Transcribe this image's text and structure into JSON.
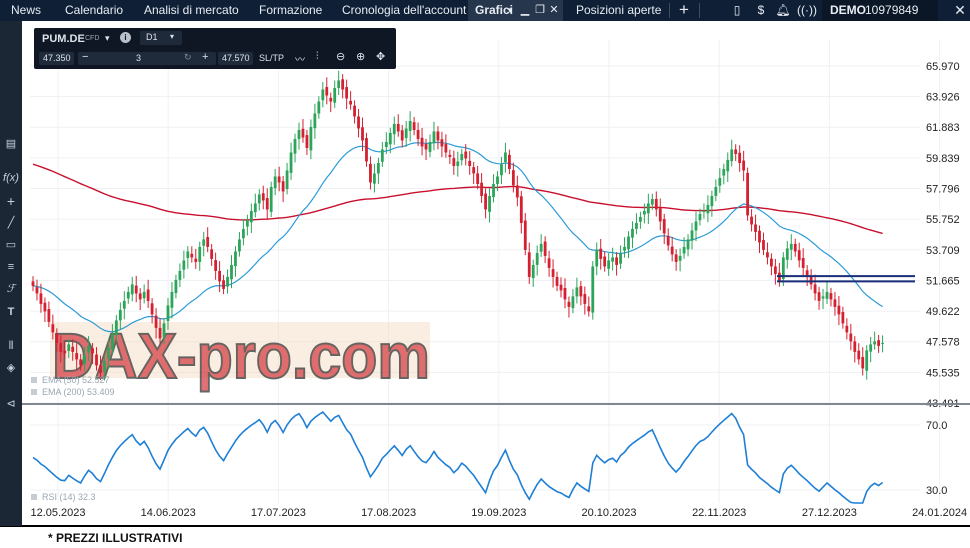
{
  "top_nav": {
    "items": [
      "News",
      "Calendario",
      "Analisi di mercato",
      "Formazione",
      "Cronologia dell'account",
      "Grafici",
      "Posizioni aperte"
    ],
    "account_label": "DEMO",
    "account_number": "10979849"
  },
  "instrument": {
    "symbol": "PUM.DE",
    "type": "CFD",
    "timeframe": "D1",
    "bid": "47.350",
    "quantity": "3",
    "ask": "47.570",
    "sltp_label": "SL/TP"
  },
  "watermark": "DAX-pro.com",
  "disclaimer": "* PREZZI ILLUSTRATIVI",
  "chart_data": {
    "type": "candlestick",
    "x_tick_labels": [
      "12.05.2023",
      "14.06.2023",
      "17.07.2023",
      "17.08.2023",
      "19.09.2023",
      "20.10.2023",
      "22.11.2023",
      "27.12.2023",
      "24.01.2024"
    ],
    "y_tick_labels": [
      "65.970",
      "63.926",
      "61.883",
      "59.839",
      "57.796",
      "55.752",
      "53.709",
      "51.665",
      "49.622",
      "47.578",
      "45.535",
      "43.491"
    ],
    "ylim": [
      43.491,
      66.5
    ],
    "indicators": [
      {
        "name": "EMA",
        "label": "EMA (50) 52.527",
        "color": "#2b9bd8"
      },
      {
        "name": "EMA",
        "label": "EMA (200) 53.409",
        "color": "#c8102e"
      }
    ],
    "horizontal_lines": [
      {
        "value": 51.95,
        "color": "#1a2e7a"
      },
      {
        "value": 51.6,
        "color": "#1a2e7a"
      }
    ],
    "rsi": {
      "label": "RSI (14) 32.3",
      "levels": [
        "70.0",
        "30.0"
      ],
      "ylim": [
        22,
        78
      ],
      "color": "#1e7fd6"
    },
    "closes": [
      51.3,
      50.8,
      50.1,
      49.6,
      48.9,
      48.2,
      47.5,
      46.9,
      46.8,
      47.4,
      46.9,
      46.4,
      46.0,
      46.7,
      47.3,
      46.8,
      46.0,
      45.5,
      46.3,
      47.2,
      48.1,
      49.0,
      49.7,
      50.3,
      50.9,
      51.4,
      50.8,
      50.4,
      50.9,
      50.3,
      49.4,
      48.5,
      47.8,
      48.8,
      50.0,
      50.9,
      51.7,
      52.3,
      53.0,
      53.6,
      53.2,
      52.9,
      53.9,
      54.4,
      53.9,
      53.1,
      52.3,
      51.6,
      51.1,
      51.9,
      52.7,
      53.6,
      54.4,
      55.1,
      55.7,
      56.3,
      56.8,
      57.4,
      57.0,
      56.4,
      57.9,
      58.6,
      58.2,
      57.6,
      59.0,
      60.2,
      61.1,
      61.7,
      61.2,
      60.5,
      61.9,
      62.8,
      63.6,
      64.4,
      64.0,
      63.6,
      64.5,
      65.0,
      64.4,
      63.8,
      63.4,
      62.6,
      61.8,
      61.0,
      59.6,
      58.2,
      58.8,
      59.5,
      60.4,
      60.9,
      61.5,
      62.1,
      61.6,
      61.0,
      61.8,
      62.3,
      61.7,
      61.1,
      60.6,
      60.4,
      60.9,
      61.6,
      61.0,
      60.6,
      60.2,
      59.9,
      59.3,
      59.6,
      60.1,
      59.8,
      59.3,
      58.8,
      58.1,
      57.3,
      56.4,
      57.3,
      58.1,
      58.6,
      59.4,
      60.2,
      59.1,
      58.0,
      57.2,
      55.5,
      53.7,
      51.9,
      52.7,
      53.5,
      54.1,
      53.3,
      52.5,
      51.9,
      51.3,
      51.0,
      50.4,
      49.9,
      50.6,
      51.2,
      50.6,
      50.1,
      49.6,
      52.6,
      53.7,
      53.1,
      52.6,
      53.0,
      53.2,
      52.7,
      53.5,
      53.9,
      54.6,
      55.1,
      55.5,
      55.9,
      56.3,
      56.8,
      57.1,
      56.4,
      55.6,
      54.8,
      54.0,
      53.4,
      52.9,
      53.3,
      53.9,
      54.4,
      55.0,
      55.6,
      56.1,
      56.3,
      56.7,
      57.3,
      57.9,
      58.5,
      59.1,
      59.7,
      60.4,
      60.1,
      59.5,
      59.0,
      56.0,
      55.4,
      54.9,
      54.2,
      53.7,
      53.2,
      52.6,
      52.1,
      51.6,
      53.2,
      53.8,
      54.1,
      53.6,
      53.0,
      52.5,
      52.0,
      51.4,
      50.8,
      50.3,
      50.6,
      50.9,
      50.4,
      49.9,
      49.4,
      48.8,
      48.2,
      47.6,
      46.9,
      46.4,
      45.8,
      47.0,
      47.4,
      47.6,
      47.3,
      47.5
    ]
  }
}
